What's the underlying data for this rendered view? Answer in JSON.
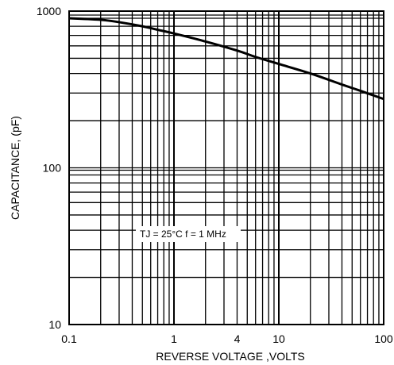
{
  "chart_data": {
    "type": "line",
    "xlabel": "REVERSE VOLTAGE ,VOLTS",
    "ylabel": "CAPACITANCE, (pF)",
    "x_scale": "log",
    "y_scale": "log",
    "xlim": [
      0.1,
      100
    ],
    "ylim": [
      10,
      1000
    ],
    "x_ticks": [
      {
        "value": 0.1,
        "label": "0.1"
      },
      {
        "value": 1,
        "label": "1"
      },
      {
        "value": 4,
        "label": "4"
      },
      {
        "value": 10,
        "label": "10"
      },
      {
        "value": 100,
        "label": "100"
      }
    ],
    "y_ticks": [
      {
        "value": 10,
        "label": "10"
      },
      {
        "value": 100,
        "label": "100"
      },
      {
        "value": 1000,
        "label": "1000"
      }
    ],
    "grid": true,
    "annotation": "TJ = 25°C  f = 1 MHz",
    "series": [
      {
        "x": [
          0.1,
          0.2,
          0.3,
          0.5,
          0.7,
          1,
          2,
          4,
          6,
          10,
          20,
          40,
          60,
          100
        ],
        "y": [
          900,
          880,
          850,
          800,
          760,
          720,
          640,
          560,
          510,
          460,
          400,
          340,
          310,
          275
        ]
      }
    ]
  }
}
